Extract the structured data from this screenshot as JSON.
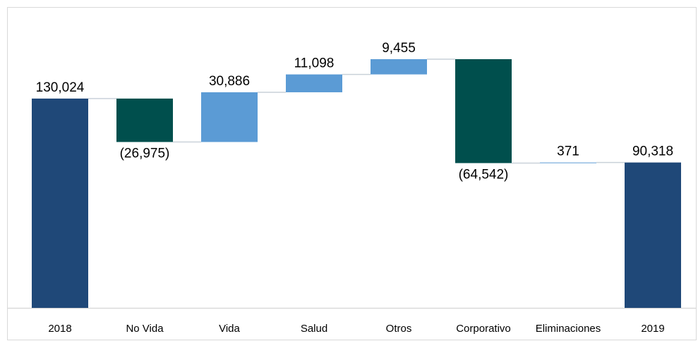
{
  "chart_data": {
    "type": "waterfall",
    "categories": [
      "2018",
      "No Vida",
      "Vida",
      "Salud",
      "Otros",
      "Corporativo",
      "Eliminaciones",
      "2019"
    ],
    "values": [
      130024,
      -26975,
      30886,
      11098,
      9455,
      -64542,
      371,
      90318
    ],
    "value_labels": [
      "130,024",
      "(26,975)",
      "30,886",
      "11,098",
      "9,455",
      "(64,542)",
      "371",
      "90,318"
    ],
    "total_color": "#1f4878",
    "increase_color": "#5b9bd5",
    "decrease_color": "#004f4d"
  }
}
